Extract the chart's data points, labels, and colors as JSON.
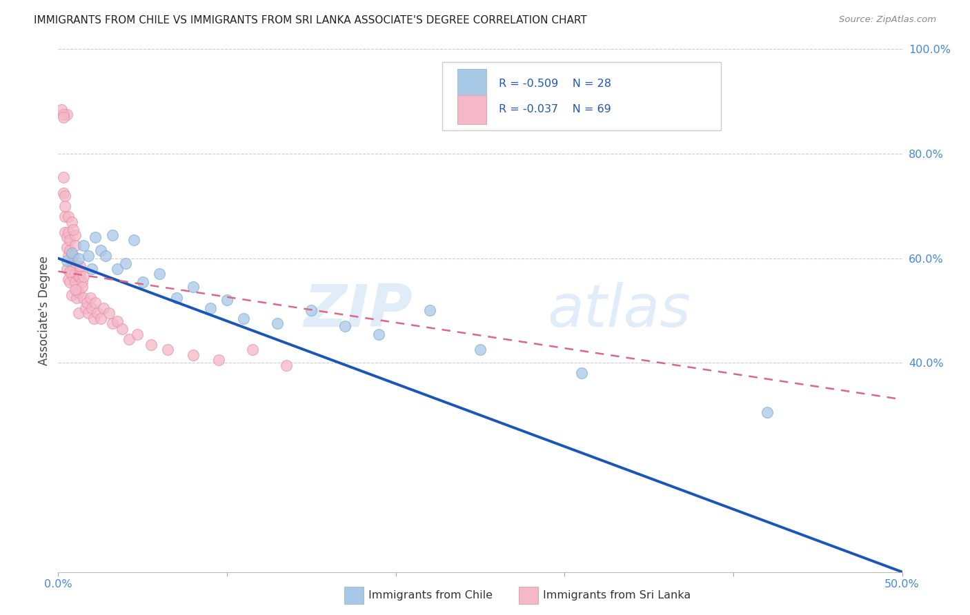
{
  "title": "IMMIGRANTS FROM CHILE VS IMMIGRANTS FROM SRI LANKA ASSOCIATE'S DEGREE CORRELATION CHART",
  "source": "Source: ZipAtlas.com",
  "ylabel": "Associate's Degree",
  "xmin": 0.0,
  "xmax": 0.5,
  "ymin": 0.0,
  "ymax": 1.0,
  "chile_color": "#a8c8e8",
  "chile_edge_color": "#7aaed4",
  "sri_lanka_color": "#f4b8c8",
  "sri_lanka_edge_color": "#e890a8",
  "chile_line_color": "#1a55bb",
  "sri_lanka_line_color": "#dd6688",
  "watermark_zip": "ZIP",
  "watermark_atlas": "atlas",
  "legend_text_color": "#2255bb",
  "legend_r_color": "#333333",
  "chile_line_x0": 0.0,
  "chile_line_y0": 0.6,
  "chile_line_x1": 0.5,
  "chile_line_y1": 0.0,
  "sri_line_x0": 0.0,
  "sri_line_y0": 0.575,
  "sri_line_x1": 0.5,
  "sri_line_y1": 0.33,
  "chile_x": [
    0.005,
    0.008,
    0.012,
    0.015,
    0.018,
    0.02,
    0.022,
    0.025,
    0.028,
    0.032,
    0.035,
    0.04,
    0.045,
    0.05,
    0.06,
    0.07,
    0.08,
    0.09,
    0.1,
    0.11,
    0.13,
    0.15,
    0.17,
    0.19,
    0.22,
    0.25,
    0.31,
    0.42
  ],
  "chile_y": [
    0.595,
    0.61,
    0.6,
    0.625,
    0.605,
    0.58,
    0.64,
    0.615,
    0.605,
    0.645,
    0.58,
    0.59,
    0.635,
    0.555,
    0.57,
    0.525,
    0.545,
    0.505,
    0.52,
    0.485,
    0.475,
    0.5,
    0.47,
    0.455,
    0.5,
    0.425,
    0.38,
    0.305
  ],
  "sri_x": [
    0.002,
    0.003,
    0.003,
    0.004,
    0.004,
    0.004,
    0.005,
    0.005,
    0.005,
    0.005,
    0.006,
    0.006,
    0.006,
    0.007,
    0.007,
    0.007,
    0.008,
    0.008,
    0.008,
    0.009,
    0.009,
    0.009,
    0.01,
    0.01,
    0.01,
    0.01,
    0.011,
    0.011,
    0.011,
    0.012,
    0.012,
    0.012,
    0.013,
    0.013,
    0.013,
    0.014,
    0.014,
    0.015,
    0.015,
    0.016,
    0.017,
    0.018,
    0.019,
    0.02,
    0.021,
    0.022,
    0.023,
    0.025,
    0.027,
    0.03,
    0.032,
    0.035,
    0.038,
    0.042,
    0.047,
    0.055,
    0.065,
    0.08,
    0.095,
    0.115,
    0.135,
    0.003,
    0.004,
    0.006,
    0.007,
    0.008,
    0.009,
    0.01,
    0.003
  ],
  "sri_y": [
    0.885,
    0.755,
    0.725,
    0.68,
    0.7,
    0.65,
    0.875,
    0.64,
    0.62,
    0.58,
    0.56,
    0.605,
    0.65,
    0.635,
    0.555,
    0.615,
    0.595,
    0.575,
    0.53,
    0.605,
    0.565,
    0.585,
    0.645,
    0.625,
    0.57,
    0.555,
    0.525,
    0.585,
    0.54,
    0.565,
    0.495,
    0.535,
    0.575,
    0.585,
    0.565,
    0.555,
    0.545,
    0.565,
    0.525,
    0.505,
    0.515,
    0.495,
    0.525,
    0.505,
    0.485,
    0.515,
    0.495,
    0.485,
    0.505,
    0.495,
    0.475,
    0.48,
    0.465,
    0.445,
    0.455,
    0.435,
    0.425,
    0.415,
    0.405,
    0.425,
    0.395,
    0.875,
    0.72,
    0.68,
    0.575,
    0.67,
    0.655,
    0.54,
    0.87
  ]
}
